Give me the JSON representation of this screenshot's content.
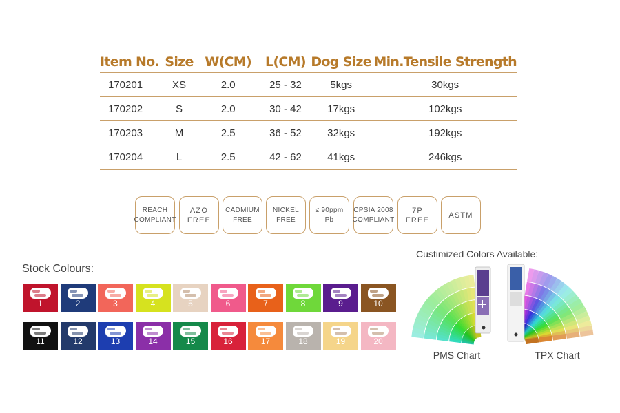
{
  "table": {
    "headers": [
      "Item No.",
      "Size",
      "W(CM)",
      "L(CM)",
      "Dog Size",
      "Min.Tensile Strength"
    ],
    "rows": [
      [
        "170201",
        "XS",
        "2.0",
        "25 - 32",
        "5kgs",
        "30kgs"
      ],
      [
        "170202",
        "S",
        "2.0",
        "30 - 42",
        "17kgs",
        "102kgs"
      ],
      [
        "170203",
        "M",
        "2.5",
        "36 - 52",
        "32kgs",
        "192kgs"
      ],
      [
        "170204",
        "L",
        "2.5",
        "42 - 62",
        "41kgs",
        "246kgs"
      ]
    ]
  },
  "badges": [
    {
      "name": "reach-compliant-badge",
      "text": "REACH\nCOMPLIANT",
      "wide": false
    },
    {
      "name": "azo-free-badge",
      "text": "AZO\nFREE",
      "wide": true
    },
    {
      "name": "cadmium-free-badge",
      "text": "CADMIUM\nFREE",
      "wide": false
    },
    {
      "name": "nickel-free-badge",
      "text": "NICKEL\nFREE",
      "wide": false
    },
    {
      "name": "lead-90ppm-badge",
      "text": "≤ 90ppm\nPb",
      "wide": false
    },
    {
      "name": "cpsia-2008-badge",
      "text": "CPSIA 2008\nCOMPLIANT",
      "wide": false
    },
    {
      "name": "7p-free-badge",
      "text": "7P\nFREE",
      "wide": true
    },
    {
      "name": "astm-badge",
      "text": "ASTM",
      "wide": true
    }
  ],
  "stock": {
    "title": "Stock Colours:",
    "colors": [
      {
        "number": "1",
        "color": "#c0142c"
      },
      {
        "number": "2",
        "color": "#1f3b7a"
      },
      {
        "number": "3",
        "color": "#f2665a"
      },
      {
        "number": "4",
        "color": "#d6e21f"
      },
      {
        "number": "5",
        "color": "#e7d3c1"
      },
      {
        "number": "6",
        "color": "#f05a8b"
      },
      {
        "number": "7",
        "color": "#e8611a"
      },
      {
        "number": "8",
        "color": "#6fd83a"
      },
      {
        "number": "9",
        "color": "#5a1d8e"
      },
      {
        "number": "10",
        "color": "#8a5522"
      },
      {
        "number": "11",
        "color": "#111111"
      },
      {
        "number": "12",
        "color": "#233a6b"
      },
      {
        "number": "13",
        "color": "#1d3eb0"
      },
      {
        "number": "14",
        "color": "#8b2fa8"
      },
      {
        "number": "15",
        "color": "#15894a"
      },
      {
        "number": "16",
        "color": "#d8223a"
      },
      {
        "number": "17",
        "color": "#f58a3c"
      },
      {
        "number": "18",
        "color": "#b9b3ad"
      },
      {
        "number": "19",
        "color": "#f5d58a"
      },
      {
        "number": "20",
        "color": "#f4b7c3"
      }
    ]
  },
  "custom": {
    "title": "Custimized Colors Available:",
    "charts": [
      {
        "label": "PMS Chart",
        "icon": "pms-color-fan-icon"
      },
      {
        "label": "TPX Chart",
        "icon": "tpx-color-fan-icon"
      }
    ]
  },
  "colors": {
    "accent": "#b77a2a",
    "rule": "#c9a06a"
  }
}
